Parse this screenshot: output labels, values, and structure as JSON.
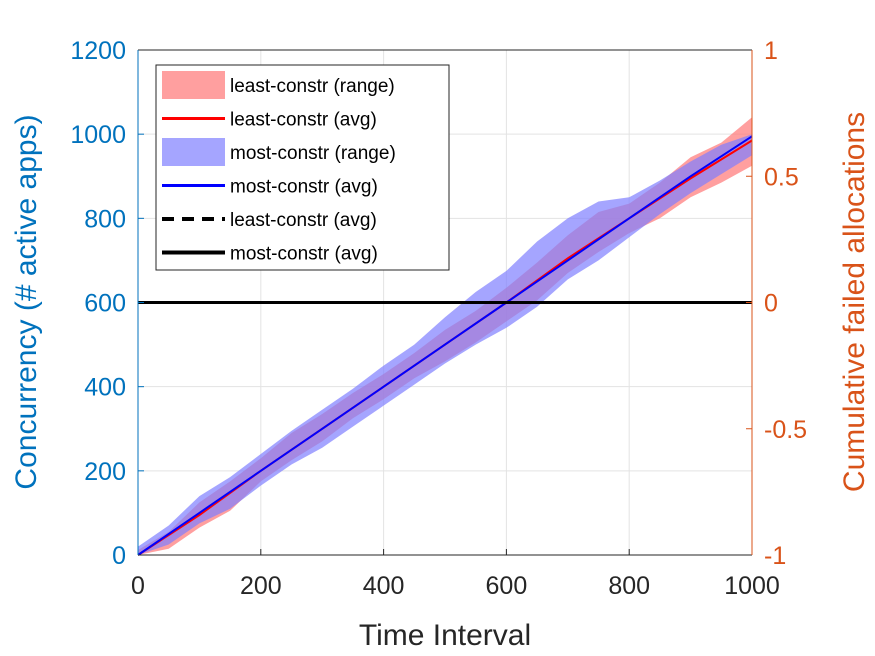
{
  "chart_data": {
    "type": "line",
    "title": "",
    "xlabel": "Time Interval",
    "ylabel_left": "Concurrency (# active apps)",
    "ylabel_right": "Cumulative failed allocations",
    "xlim": [
      0,
      1000
    ],
    "ylim_left": [
      0,
      1200
    ],
    "ylim_right": [
      -1,
      1
    ],
    "xticks": [
      "0",
      "200",
      "400",
      "600",
      "800",
      "1000"
    ],
    "yticks_left": [
      "0",
      "200",
      "400",
      "600",
      "800",
      "1000",
      "1200"
    ],
    "yticks_right": [
      "-1",
      "-0.5",
      "0",
      "0.5",
      "1"
    ],
    "grid": true,
    "legend_position": "top-left",
    "colors": {
      "left_axis": "#0072BD",
      "right_axis": "#D95319",
      "least_range": "#ff7f7f",
      "least_avg": "#ff0000",
      "most_range": "#7f7fff",
      "most_avg": "#0000ff",
      "failed": "#000000"
    },
    "series": [
      {
        "name": "least-constr (range)",
        "kind": "band",
        "axis": "left",
        "x": [
          0,
          50,
          100,
          150,
          200,
          250,
          300,
          350,
          400,
          450,
          500,
          550,
          600,
          650,
          700,
          750,
          800,
          850,
          900,
          950,
          1000
        ],
        "lower": [
          0,
          15,
          65,
          105,
          175,
          225,
          270,
          325,
          370,
          420,
          460,
          505,
          555,
          605,
          670,
          720,
          765,
          800,
          850,
          885,
          925
        ],
        "upper": [
          12,
          55,
          125,
          175,
          230,
          290,
          335,
          385,
          430,
          480,
          535,
          580,
          635,
          695,
          760,
          815,
          835,
          885,
          945,
          980,
          1040
        ]
      },
      {
        "name": "least-constr (avg)",
        "kind": "line",
        "axis": "left",
        "dash": false,
        "x": [
          0,
          100,
          200,
          300,
          400,
          500,
          600,
          700,
          800,
          900,
          1000
        ],
        "values": [
          0,
          95,
          200,
          300,
          400,
          500,
          600,
          705,
          800,
          895,
          985
        ]
      },
      {
        "name": "most-constr (range)",
        "kind": "band",
        "axis": "left",
        "x": [
          0,
          50,
          100,
          150,
          200,
          250,
          300,
          350,
          400,
          450,
          500,
          550,
          600,
          650,
          700,
          750,
          800,
          850,
          900,
          950,
          1000
        ],
        "lower": [
          0,
          25,
          75,
          110,
          165,
          215,
          255,
          305,
          355,
          405,
          455,
          500,
          540,
          590,
          655,
          700,
          755,
          810,
          860,
          905,
          950
        ],
        "upper": [
          20,
          70,
          140,
          185,
          240,
          295,
          345,
          395,
          450,
          500,
          565,
          625,
          675,
          745,
          800,
          840,
          850,
          890,
          935,
          975,
          1000
        ]
      },
      {
        "name": "most-constr (avg)",
        "kind": "line",
        "axis": "left",
        "dash": false,
        "x": [
          0,
          100,
          200,
          300,
          400,
          500,
          600,
          700,
          800,
          900,
          1000
        ],
        "values": [
          0,
          100,
          200,
          300,
          400,
          500,
          600,
          700,
          800,
          900,
          995
        ]
      },
      {
        "name": "least-constr (avg)",
        "kind": "line",
        "axis": "right",
        "dash": true,
        "x": [
          0,
          1000
        ],
        "values": [
          0,
          0
        ]
      },
      {
        "name": "most-constr (avg)",
        "kind": "line",
        "axis": "right",
        "dash": false,
        "x": [
          0,
          1000
        ],
        "values": [
          0,
          0
        ]
      }
    ]
  }
}
